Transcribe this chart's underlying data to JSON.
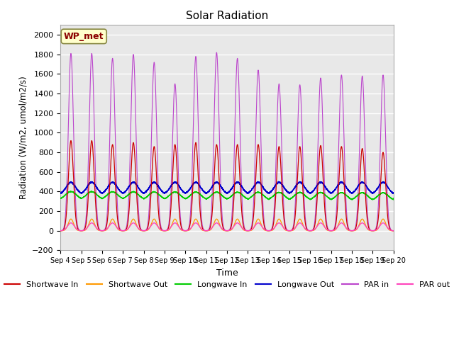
{
  "title": "Solar Radiation",
  "ylabel": "Radiation (W/m2, umol/m2/s)",
  "xlabel": "Time",
  "ylim": [
    -200,
    2100
  ],
  "yticks": [
    -200,
    0,
    200,
    400,
    600,
    800,
    1000,
    1200,
    1400,
    1600,
    1800,
    2000
  ],
  "bg_color": "#ffffff",
  "plot_bg_color": "#e8e8e8",
  "grid_color": "#ffffff",
  "annotation_text": "WP_met",
  "annotation_bg": "#ffffcc",
  "annotation_border": "#8B0000",
  "line_colors": {
    "sw_in": "#cc0000",
    "sw_out": "#ff9900",
    "lw_in": "#00cc00",
    "lw_out": "#0000cc",
    "par_in": "#bb44cc",
    "par_out": "#ff44bb"
  },
  "legend_labels": [
    "Shortwave In",
    "Shortwave Out",
    "Longwave In",
    "Longwave Out",
    "PAR in",
    "PAR out"
  ],
  "n_days": 16,
  "start_day": 4,
  "sw_in_peaks": [
    920,
    920,
    880,
    900,
    860,
    880,
    900,
    880,
    880,
    880,
    860,
    860,
    870,
    860,
    840,
    800
  ],
  "par_in_peaks": [
    1810,
    1810,
    1760,
    1800,
    1720,
    1500,
    1780,
    1820,
    1760,
    1640,
    1500,
    1490,
    1560,
    1590,
    1580,
    1590
  ]
}
